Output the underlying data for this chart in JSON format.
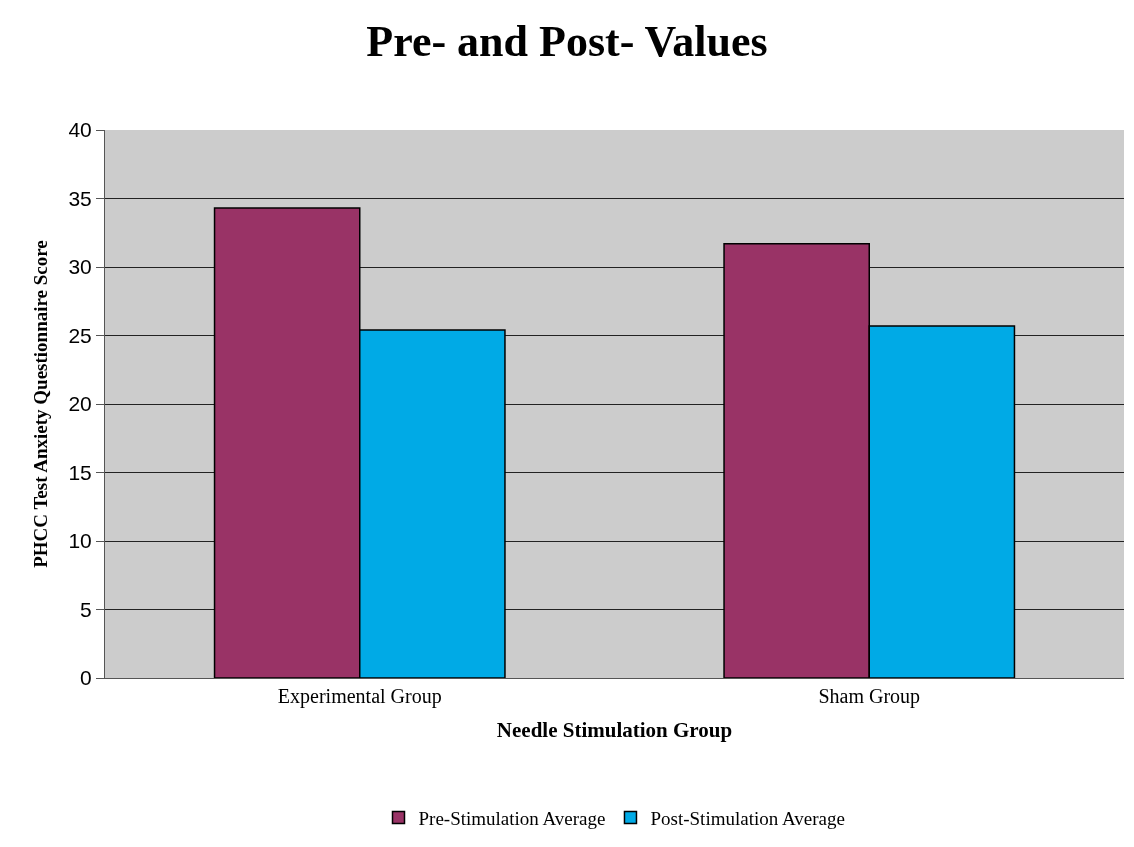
{
  "chart_data": {
    "type": "bar",
    "title": "Pre- and Post- Values",
    "xlabel": "Needle Stimulation Group",
    "ylabel": "PHCC Test Anxiety Questionnaire Score",
    "categories": [
      "Experimental Group",
      "Sham Group"
    ],
    "series": [
      {
        "name": "Pre-Stimulation Average",
        "color": "#993366",
        "values": [
          34.3,
          31.7
        ]
      },
      {
        "name": "Post-Stimulation Average",
        "color": "#00aae6",
        "values": [
          25.4,
          25.7
        ]
      }
    ],
    "ylim": [
      0,
      40
    ],
    "yticks": [
      0,
      5,
      10,
      15,
      20,
      25,
      30,
      35,
      40
    ],
    "grid": "y",
    "legend": "bottom"
  }
}
